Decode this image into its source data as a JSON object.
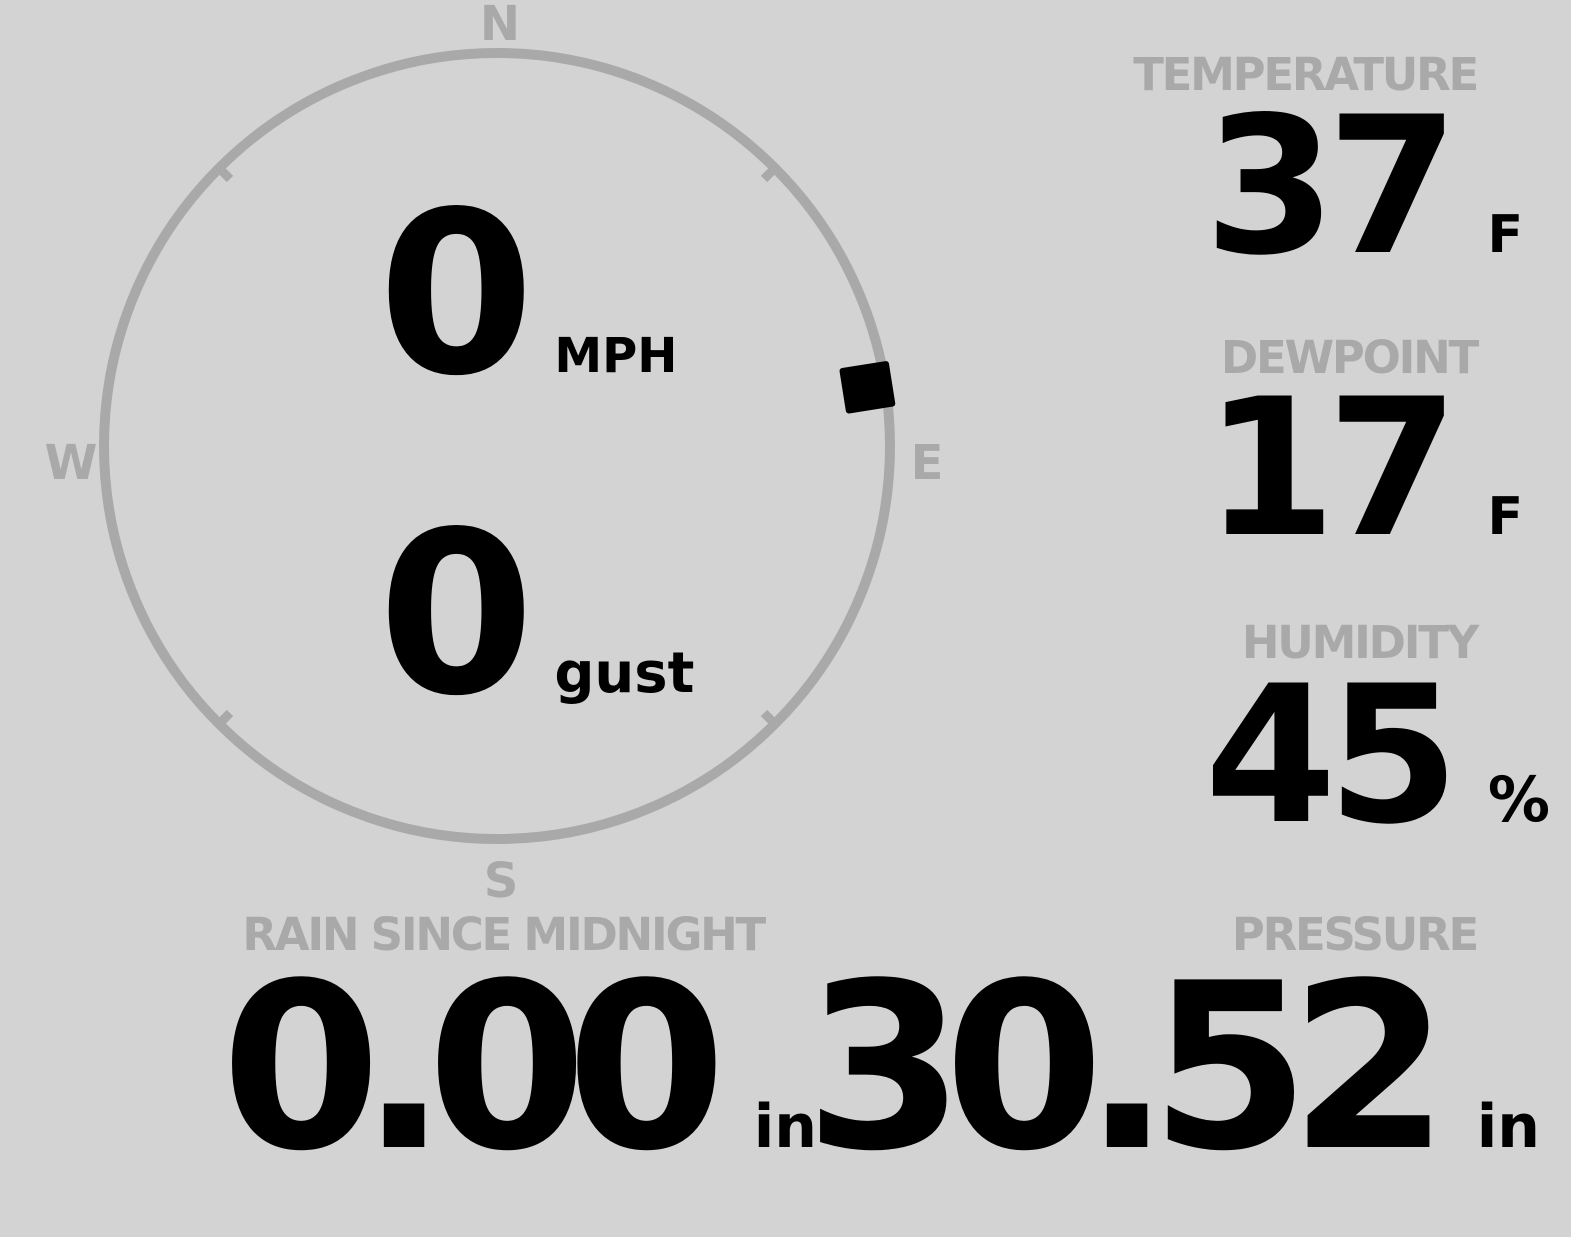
{
  "colors": {
    "background": "#d3d3d3",
    "muted": "#a9a9a9",
    "text": "#000000"
  },
  "compass": {
    "cardinals": {
      "north": "N",
      "east": "E",
      "south": "S",
      "west": "W"
    },
    "wind_speed": {
      "value": "0",
      "unit": "MPH"
    },
    "wind_gust": {
      "value": "0",
      "unit": "gust"
    },
    "direction_deg": 81
  },
  "metrics": {
    "temperature": {
      "label": "TEMPERATURE",
      "value": "37",
      "unit": "F"
    },
    "dewpoint": {
      "label": "DEWPOINT",
      "value": "17",
      "unit": "F"
    },
    "humidity": {
      "label": "HUMIDITY",
      "value": "45",
      "unit": "%"
    },
    "rain": {
      "label": "RAIN SINCE MIDNIGHT",
      "value": "0.00",
      "unit": "in"
    },
    "pressure": {
      "label": "PRESSURE",
      "value": "30.52",
      "unit": "in"
    }
  }
}
